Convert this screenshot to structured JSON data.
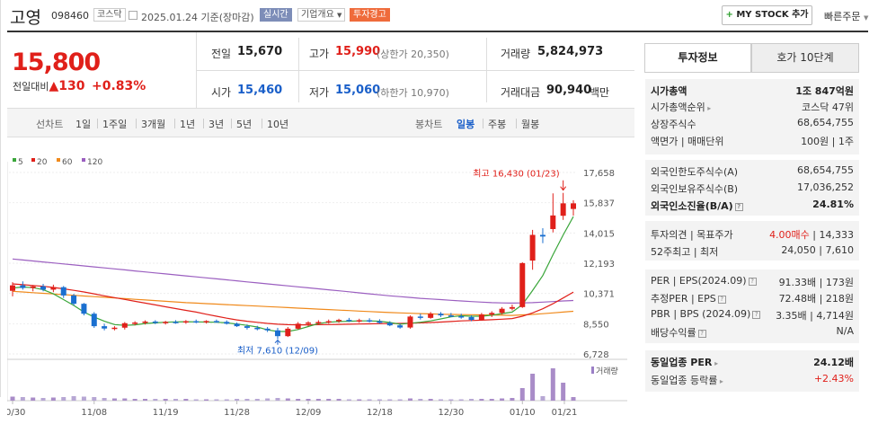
{
  "header": {
    "name": "고영",
    "code": "098460",
    "market_badge": "코스닥",
    "date": "2025.01.24",
    "date_suffix": "기준(장마감)",
    "realtime_badge": "실시간",
    "company_overview": "기업개요",
    "investment_warning": "투자경고",
    "mystock_button": "MY STOCK 추가",
    "quick_order": "빠른주문"
  },
  "price": {
    "current": "15,800",
    "change_label": "전일대비",
    "change_amount": "130",
    "change_pct": "+0.83%"
  },
  "quote": {
    "prev_label": "전일",
    "prev": "15,670",
    "high_label": "고가",
    "high": "15,990",
    "upper_limit": "(상한가 20,350)",
    "volume_label": "거래량",
    "volume": "5,824,973",
    "open_label": "시가",
    "open": "15,460",
    "low_label": "저가",
    "low": "15,060",
    "lower_limit": "(하한가 10,970)",
    "amount_label": "거래대금",
    "amount": "90,940",
    "amount_unit": "백만"
  },
  "periods": {
    "line_label": "선차트",
    "line_items": [
      "1일",
      "1주일",
      "3개월",
      "1년",
      "3년",
      "5년",
      "10년"
    ],
    "candle_label": "봉차트",
    "candle_items": [
      "일봉",
      "주봉",
      "월봉"
    ],
    "candle_active": "일봉"
  },
  "legend": [
    {
      "label": "5",
      "color": "#3aa63a"
    },
    {
      "label": "20",
      "color": "#e0201a"
    },
    {
      "label": "60",
      "color": "#f08a1c"
    },
    {
      "label": "120",
      "color": "#9b5fc0"
    }
  ],
  "chart_data": {
    "type": "candlestick",
    "y_ticks": [
      "17,658",
      "15,837",
      "14,015",
      "12,193",
      "10,371",
      "8,550",
      "6,728"
    ],
    "x_ticks": [
      "10/30",
      "11/08",
      "11/19",
      "11/28",
      "12/09",
      "12/18",
      "12/30",
      "01/10",
      "01/21"
    ],
    "annotation_high": "최고 16,430 (01/23)",
    "annotation_low": "최저 7,610 (12/09)",
    "volume_label": "거래량",
    "up_color": "#e0201a",
    "down_color": "#1a6fd0",
    "candles": [
      [
        10530,
        11050,
        10200,
        10860
      ],
      [
        10860,
        11100,
        10600,
        10700
      ],
      [
        10700,
        10880,
        10500,
        10800
      ],
      [
        10800,
        10950,
        10500,
        10600
      ],
      [
        10600,
        10900,
        10450,
        10750
      ],
      [
        10750,
        10820,
        10100,
        10250
      ],
      [
        10250,
        10350,
        9650,
        9750
      ],
      [
        9750,
        9800,
        9050,
        9150
      ],
      [
        9150,
        9250,
        8300,
        8400
      ],
      [
        8400,
        8550,
        8150,
        8260
      ],
      [
        8260,
        8400,
        8150,
        8310
      ],
      [
        8310,
        8650,
        8200,
        8580
      ],
      [
        8580,
        8700,
        8450,
        8620
      ],
      [
        8620,
        8750,
        8500,
        8680
      ],
      [
        8680,
        8760,
        8520,
        8600
      ],
      [
        8600,
        8720,
        8500,
        8660
      ],
      [
        8660,
        8760,
        8550,
        8650
      ],
      [
        8650,
        8770,
        8550,
        8700
      ],
      [
        8700,
        8800,
        8580,
        8650
      ],
      [
        8650,
        8760,
        8560,
        8710
      ],
      [
        8710,
        8800,
        8600,
        8660
      ],
      [
        8660,
        8750,
        8500,
        8550
      ],
      [
        8550,
        8620,
        8350,
        8400
      ],
      [
        8400,
        8500,
        8200,
        8300
      ],
      [
        8300,
        8420,
        8150,
        8250
      ],
      [
        8250,
        8350,
        8050,
        8150
      ],
      [
        8150,
        8300,
        7610,
        7800
      ],
      [
        7800,
        8350,
        7750,
        8250
      ],
      [
        8250,
        8650,
        8200,
        8550
      ],
      [
        8550,
        8700,
        8400,
        8620
      ],
      [
        8620,
        8760,
        8500,
        8650
      ],
      [
        8650,
        8800,
        8550,
        8700
      ],
      [
        8700,
        8850,
        8600,
        8780
      ],
      [
        8780,
        8900,
        8650,
        8720
      ],
      [
        8720,
        8850,
        8600,
        8760
      ],
      [
        8760,
        8880,
        8620,
        8700
      ],
      [
        8700,
        8820,
        8550,
        8600
      ],
      [
        8600,
        8700,
        8400,
        8450
      ],
      [
        8450,
        8550,
        8250,
        8320
      ],
      [
        8320,
        9050,
        8250,
        8980
      ],
      [
        8980,
        9150,
        8800,
        8900
      ],
      [
        8900,
        9250,
        8850,
        9150
      ],
      [
        9150,
        9250,
        8950,
        9050
      ],
      [
        9050,
        9200,
        8950,
        9000
      ],
      [
        9000,
        9150,
        8850,
        8950
      ],
      [
        8950,
        9050,
        8700,
        8780
      ],
      [
        8780,
        9200,
        8750,
        9100
      ],
      [
        9100,
        9300,
        8950,
        9200
      ],
      [
        9200,
        9550,
        9100,
        9450
      ],
      [
        9450,
        9700,
        9350,
        9550
      ],
      [
        9550,
        12250,
        9500,
        12200
      ],
      [
        12350,
        14200,
        11800,
        13900
      ],
      [
        13900,
        14300,
        13400,
        13800
      ],
      [
        14250,
        16400,
        14050,
        15070
      ],
      [
        15050,
        16430,
        14800,
        15800
      ],
      [
        15460,
        15990,
        15060,
        15800
      ]
    ],
    "ma5": [
      10700,
      10760,
      10720,
      10600,
      10350,
      10000,
      9650,
      9250,
      8950,
      8700,
      8500,
      8450,
      8480,
      8560,
      8600,
      8640,
      8660,
      8670,
      8660,
      8650,
      8640,
      8600,
      8530,
      8450,
      8350,
      8180,
      8080,
      8080,
      8200,
      8380,
      8560,
      8640,
      8680,
      8700,
      8720,
      8720,
      8700,
      8620,
      8520,
      8580,
      8640,
      8720,
      8840,
      8960,
      9030,
      9000,
      9000,
      9060,
      9160,
      9250,
      9700,
      10550,
      11450,
      12700,
      13900,
      15000
    ],
    "ma20": [
      10950,
      10900,
      10850,
      10800,
      10730,
      10650,
      10560,
      10460,
      10350,
      10230,
      10120,
      10010,
      9900,
      9790,
      9680,
      9570,
      9460,
      9350,
      9250,
      9120,
      9000,
      8880,
      8780,
      8700,
      8630,
      8570,
      8520,
      8490,
      8480,
      8480,
      8490,
      8500,
      8510,
      8520,
      8530,
      8540,
      8550,
      8560,
      8570,
      8580,
      8600,
      8620,
      8650,
      8680,
      8720,
      8740,
      8760,
      8790,
      8820,
      8860,
      9000,
      9200,
      9450,
      9750,
      10100,
      10450
    ],
    "ma60": [
      10500,
      10460,
      10420,
      10380,
      10340,
      10300,
      10260,
      10220,
      10180,
      10140,
      10100,
      10060,
      10020,
      9980,
      9940,
      9900,
      9860,
      9820,
      9790,
      9760,
      9730,
      9700,
      9670,
      9640,
      9610,
      9580,
      9550,
      9520,
      9490,
      9460,
      9430,
      9400,
      9370,
      9340,
      9310,
      9280,
      9250,
      9220,
      9200,
      9180,
      9160,
      9140,
      9120,
      9110,
      9100,
      9090,
      9080,
      9070,
      9060,
      9050,
      9080,
      9110,
      9150,
      9200,
      9250,
      9300
    ],
    "ma120": [
      12450,
      12390,
      12330,
      12270,
      12210,
      12150,
      12090,
      12030,
      11970,
      11910,
      11850,
      11790,
      11730,
      11670,
      11610,
      11550,
      11490,
      11430,
      11370,
      11310,
      11250,
      11190,
      11130,
      11070,
      11010,
      10950,
      10890,
      10830,
      10770,
      10710,
      10650,
      10590,
      10530,
      10470,
      10410,
      10350,
      10290,
      10230,
      10180,
      10130,
      10080,
      10040,
      10000,
      9960,
      9920,
      9880,
      9850,
      9820,
      9800,
      9790,
      9800,
      9820,
      9850,
      9880,
      9920,
      9950
    ],
    "volume": [
      9,
      8,
      7,
      6,
      7,
      8,
      10,
      9,
      8,
      6,
      5,
      5,
      4,
      4,
      4,
      4,
      4,
      4,
      3,
      3,
      3,
      3,
      4,
      4,
      4,
      5,
      6,
      5,
      4,
      4,
      4,
      4,
      4,
      3,
      3,
      3,
      3,
      3,
      3,
      5,
      4,
      4,
      3,
      3,
      3,
      4,
      4,
      4,
      5,
      6,
      28,
      60,
      10,
      72,
      40,
      8
    ]
  },
  "right": {
    "tab_invest": "투자정보",
    "tab_hoga": "호가 10단계",
    "group1": [
      {
        "k": "시가총액",
        "v": "1조 847억원",
        "bold": true
      },
      {
        "k": "시가총액순위",
        "v": "코스닥 47위",
        "arr": true
      },
      {
        "k": "상장주식수",
        "v": "68,654,755"
      },
      {
        "k": "액면가 | 매매단위",
        "v": "100원 | 1주"
      }
    ],
    "group2": [
      {
        "k": "외국인한도주식수(A)",
        "v": "68,654,755"
      },
      {
        "k": "외국인보유주식수(B)",
        "v": "17,036,252"
      },
      {
        "k": "외국인소진율(B/A)",
        "v": "24.81%",
        "bold": true,
        "q": true
      }
    ],
    "group3": [
      {
        "k": "투자의견 | 목표주가",
        "v_red": "4.00매수",
        "v": "14,333"
      },
      {
        "k": "52주최고 | 최저",
        "v": "24,050 | 7,610"
      }
    ],
    "group4": [
      {
        "k": "PER | EPS(2024.09)",
        "v": "91.33배 | 173원",
        "q": true
      },
      {
        "k": "추정PER | EPS",
        "v": "72.48배 | 218원",
        "q": true
      },
      {
        "k": "PBR | BPS (2024.09)",
        "v": "3.35배 | 4,714원",
        "q": true
      },
      {
        "k": "배당수익률",
        "v": "N/A",
        "q": true
      }
    ],
    "group5": [
      {
        "k": "동일업종 PER",
        "v": "24.12배",
        "bold": true,
        "arr": true
      },
      {
        "k": "동일업종 등락률",
        "v_red": "+2.43%",
        "arr": true
      }
    ]
  }
}
